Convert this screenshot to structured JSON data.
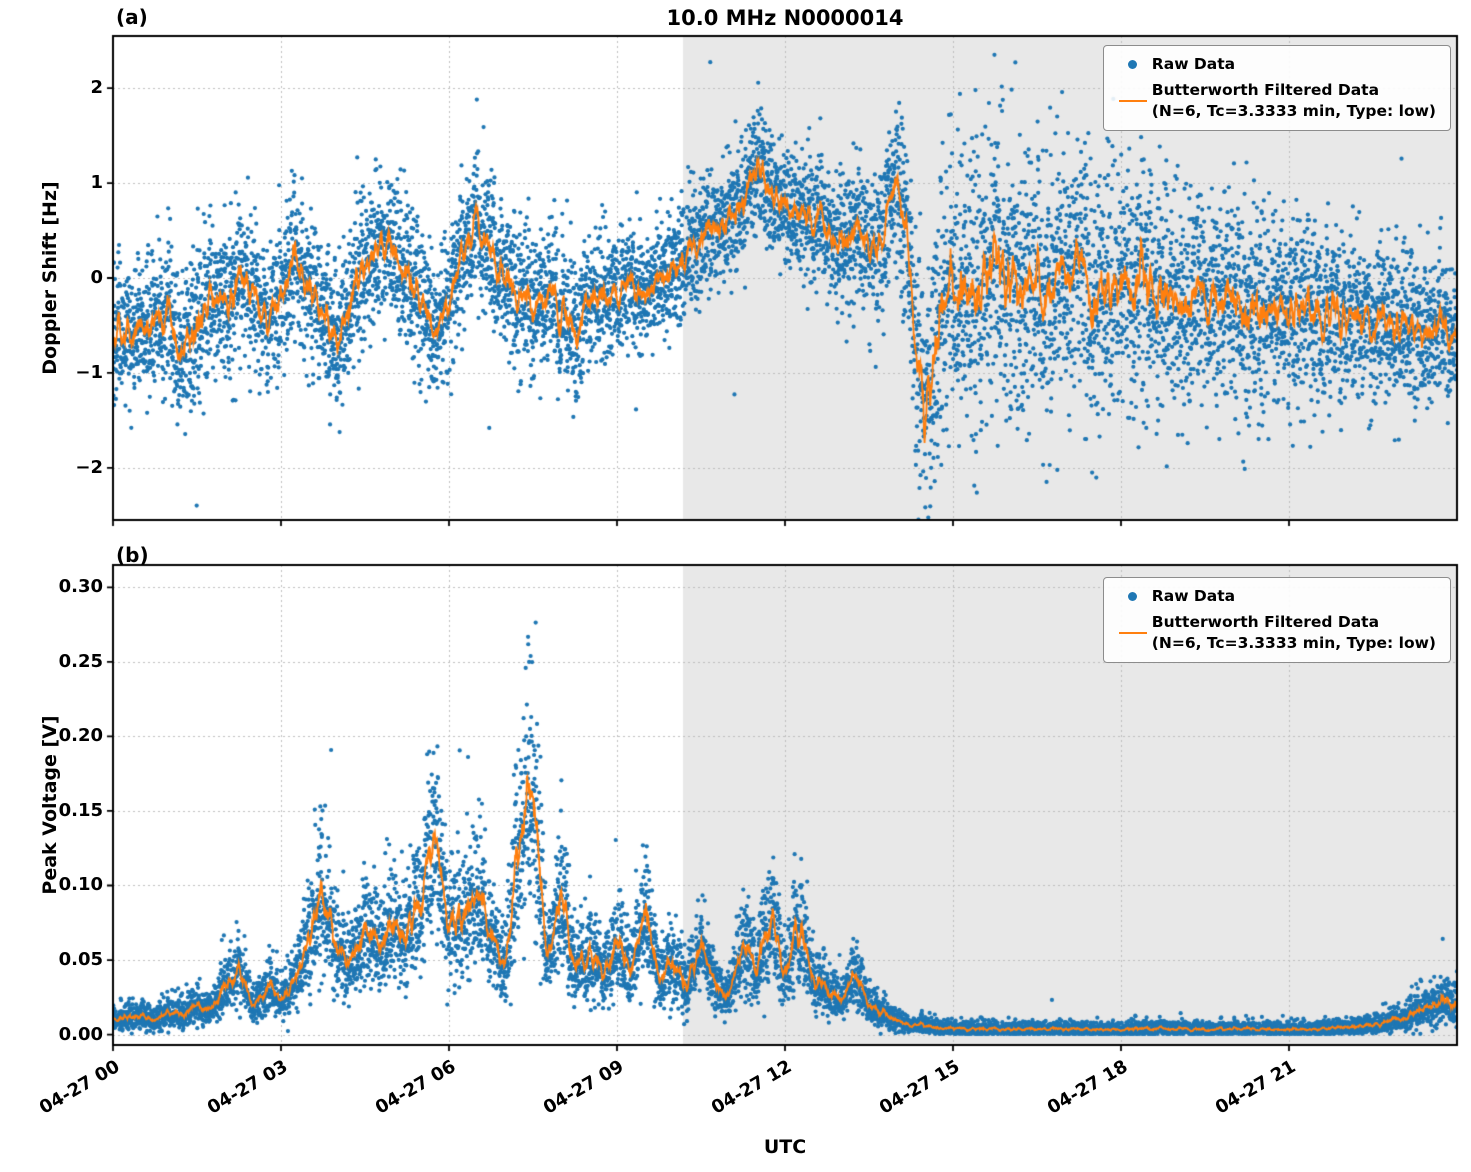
{
  "figure": {
    "title": "10.0 MHz N0000014",
    "panel_a_tag": "(a)",
    "panel_b_tag": "(b)",
    "xlabel": "UTC",
    "colors": {
      "raw": "#1f77b4",
      "filtered": "#ff7f0e",
      "shade": "#e8e8e8",
      "grid": "#bfbfbf",
      "spine": "#000000"
    }
  },
  "legend": {
    "raw_label": "Raw Data",
    "filtered_label_line1": "Butterworth Filtered Data",
    "filtered_label_line2": "(N=6, Tc=3.3333 min, Type: low)"
  },
  "chart_data": [
    {
      "type": "scatter",
      "panel": "a",
      "title": "10.0 MHz N0000014",
      "ylabel": "Doppler Shift [Hz]",
      "ylim": [
        -2.55,
        2.55
      ],
      "yticks": [
        2,
        1,
        0,
        -1,
        -2
      ],
      "ytick_labels": [
        "2",
        "1",
        "0",
        "−1",
        "−2"
      ],
      "xlim_hours": [
        0,
        24
      ],
      "xtick_hours": [
        0,
        3,
        6,
        9,
        12,
        15,
        18,
        21
      ],
      "xtick_labels": [
        "04-27 00",
        "04-27 03",
        "04-27 06",
        "04-27 09",
        "04-27 12",
        "04-27 15",
        "04-27 18",
        "04-27 21"
      ],
      "show_xtick_labels": false,
      "grid": true,
      "legend_position": "upper right",
      "shaded_region_hours": [
        10.18,
        24
      ],
      "series": [
        {
          "name": "Raw Data",
          "type": "scatter",
          "color": "#1f77b4",
          "marker_px": 2.1,
          "synth": {
            "n": 9000,
            "noise": "gaussian",
            "spread_t": [
              0,
              2,
              4,
              6,
              8,
              9,
              9.5,
              10,
              11,
              12,
              13,
              13.8,
              14.2,
              14.6,
              15,
              16,
              17,
              18,
              19,
              20,
              21,
              22,
              23,
              24
            ],
            "spread_v": [
              0.35,
              0.4,
              0.4,
              0.38,
              0.42,
              0.32,
              0.28,
              0.33,
              0.3,
              0.32,
              0.38,
              0.45,
              0.55,
              0.75,
              0.8,
              0.75,
              0.7,
              0.65,
              0.6,
              0.55,
              0.5,
              0.45,
              0.4,
              0.35
            ],
            "outlier_p": 0.005,
            "outlier_mult": 2.2
          }
        },
        {
          "name": "Butterworth Filtered Data (N=6, Tc=3.3333 min, Type: low)",
          "type": "line",
          "color": "#ff7f0e",
          "t_start": 0,
          "t_step": 0.25,
          "ma_window": 21,
          "v": [
            -0.55,
            -0.62,
            -0.48,
            -0.55,
            -0.38,
            -0.8,
            -0.45,
            -0.18,
            -0.3,
            0.12,
            -0.15,
            -0.45,
            -0.12,
            0.18,
            -0.05,
            -0.35,
            -0.72,
            -0.3,
            0.1,
            0.38,
            0.28,
            0.05,
            -0.3,
            -0.6,
            -0.25,
            0.25,
            0.6,
            0.35,
            0.02,
            -0.18,
            -0.28,
            -0.12,
            -0.35,
            -0.55,
            -0.28,
            -0.15,
            -0.22,
            -0.1,
            -0.18,
            -0.05,
            0.05,
            0.22,
            0.4,
            0.55,
            0.65,
            0.8,
            1.25,
            0.85,
            0.78,
            0.6,
            0.62,
            0.5,
            0.38,
            0.55,
            0.28,
            0.45,
            1.2,
            -0.1,
            -1.55,
            -0.45,
            0.15,
            -0.35,
            -0.05,
            0.32,
            0.05,
            -0.25,
            0.02,
            -0.12,
            0.1,
            0.0,
            -0.15,
            -0.05,
            -0.18,
            -0.08,
            -0.22,
            -0.12,
            -0.25,
            -0.15,
            -0.28,
            -0.18,
            -0.3,
            -0.2,
            -0.32,
            -0.25,
            -0.35,
            -0.28,
            -0.4,
            -0.32,
            -0.45,
            -0.38,
            -0.5,
            -0.42,
            -0.55,
            -0.48,
            -0.6,
            -0.55,
            -0.65
          ]
        }
      ]
    },
    {
      "type": "scatter",
      "panel": "b",
      "ylabel": "Peak Voltage [V]",
      "ylim": [
        -0.007,
        0.315
      ],
      "yticks": [
        0.3,
        0.25,
        0.2,
        0.15,
        0.1,
        0.05,
        0.0
      ],
      "ytick_labels": [
        "0.30",
        "0.25",
        "0.20",
        "0.15",
        "0.10",
        "0.05",
        "0.00"
      ],
      "xlim_hours": [
        0,
        24
      ],
      "xtick_hours": [
        0,
        3,
        6,
        9,
        12,
        15,
        18,
        21
      ],
      "xtick_labels": [
        "04-27 00",
        "04-27 03",
        "04-27 06",
        "04-27 09",
        "04-27 12",
        "04-27 15",
        "04-27 18",
        "04-27 21"
      ],
      "show_xtick_labels": true,
      "grid": true,
      "legend_position": "upper right",
      "shaded_region_hours": [
        10.18,
        24
      ],
      "series": [
        {
          "name": "Raw Data",
          "type": "scatter",
          "color": "#1f77b4",
          "marker_px": 2.1,
          "synth": {
            "n": 9000,
            "noise": "gaussian-asymmetric",
            "spread_base": 0.002,
            "spread_scale": 0.33,
            "up": 1.0,
            "down": 0.65,
            "floor": 0.0005,
            "outlier_p": 0.004,
            "outlier_mult": 2.0
          }
        },
        {
          "name": "Butterworth Filtered Data (N=6, Tc=3.3333 min, Type: low)",
          "type": "line",
          "color": "#ff7f0e",
          "t_start": 0,
          "t_step": 0.25,
          "ma_window": 21,
          "v": [
            0.01,
            0.01,
            0.012,
            0.01,
            0.015,
            0.012,
            0.018,
            0.015,
            0.03,
            0.042,
            0.018,
            0.03,
            0.022,
            0.035,
            0.06,
            0.095,
            0.055,
            0.05,
            0.065,
            0.055,
            0.07,
            0.06,
            0.085,
            0.128,
            0.065,
            0.075,
            0.09,
            0.06,
            0.045,
            0.125,
            0.155,
            0.05,
            0.088,
            0.04,
            0.055,
            0.035,
            0.06,
            0.04,
            0.082,
            0.035,
            0.048,
            0.028,
            0.06,
            0.032,
            0.025,
            0.058,
            0.04,
            0.075,
            0.04,
            0.07,
            0.035,
            0.028,
            0.022,
            0.04,
            0.018,
            0.012,
            0.008,
            0.006,
            0.005,
            0.004,
            0.004,
            0.003,
            0.003,
            0.003,
            0.003,
            0.003,
            0.003,
            0.003,
            0.003,
            0.003,
            0.003,
            0.003,
            0.003,
            0.003,
            0.003,
            0.003,
            0.003,
            0.003,
            0.003,
            0.003,
            0.003,
            0.003,
            0.003,
            0.003,
            0.003,
            0.003,
            0.003,
            0.004,
            0.004,
            0.005,
            0.006,
            0.008,
            0.01,
            0.014,
            0.018,
            0.022,
            0.018
          ]
        }
      ]
    }
  ]
}
